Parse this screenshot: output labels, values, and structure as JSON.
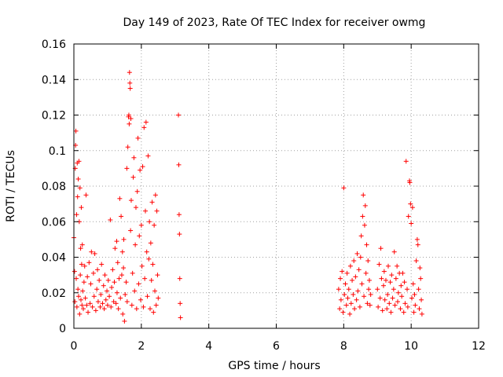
{
  "chart_data": {
    "type": "scatter",
    "title": "Day 149 of 2023, Rate Of TEC Index for receiver owmg",
    "xlabel": "GPS time / hours",
    "ylabel": "ROTI / TECUs",
    "xlim": [
      0,
      12
    ],
    "ylim": [
      0,
      0.16
    ],
    "x_ticks": [
      0,
      2,
      4,
      6,
      8,
      10,
      12
    ],
    "y_ticks": [
      0,
      0.02,
      0.04,
      0.06,
      0.08,
      0.1,
      0.12,
      0.14,
      0.16
    ],
    "x_tick_labels": [
      "0",
      "2",
      "4",
      "6",
      "8",
      "10",
      "12"
    ],
    "y_tick_labels": [
      "0",
      "0.02",
      "0.04",
      "0.06",
      "0.08",
      "0.1",
      "0.12",
      "0.14",
      "0.16"
    ],
    "grid": true,
    "marker": "+",
    "series_color": "#ff0000",
    "series": [
      {
        "points": [
          [
            0.0,
            0.051
          ],
          [
            0.02,
            0.032
          ],
          [
            0.03,
            0.015
          ],
          [
            0.04,
            0.09
          ],
          [
            0.05,
            0.103
          ],
          [
            0.06,
            0.111
          ],
          [
            0.07,
            0.028
          ],
          [
            0.08,
            0.064
          ],
          [
            0.09,
            0.012
          ],
          [
            0.1,
            0.093
          ],
          [
            0.11,
            0.074
          ],
          [
            0.12,
            0.022
          ],
          [
            0.13,
            0.084
          ],
          [
            0.14,
            0.018
          ],
          [
            0.15,
            0.094
          ],
          [
            0.16,
            0.06
          ],
          [
            0.17,
            0.008
          ],
          [
            0.18,
            0.079
          ],
          [
            0.19,
            0.03
          ],
          [
            0.2,
            0.045
          ],
          [
            0.21,
            0.016
          ],
          [
            0.22,
            0.068
          ],
          [
            0.23,
            0.036
          ],
          [
            0.24,
            0.013
          ],
          [
            0.25,
            0.047
          ],
          [
            0.26,
            0.021
          ],
          [
            0.28,
            0.011
          ],
          [
            0.3,
            0.026
          ],
          [
            0.32,
            0.035
          ],
          [
            0.34,
            0.017
          ],
          [
            0.36,
            0.075
          ],
          [
            0.38,
            0.013
          ],
          [
            0.4,
            0.029
          ],
          [
            0.42,
            0.009
          ],
          [
            0.45,
            0.037
          ],
          [
            0.48,
            0.014
          ],
          [
            0.5,
            0.025
          ],
          [
            0.52,
            0.043
          ],
          [
            0.55,
            0.012
          ],
          [
            0.58,
            0.031
          ],
          [
            0.6,
            0.018
          ],
          [
            0.62,
            0.042
          ],
          [
            0.65,
            0.01
          ],
          [
            0.68,
            0.022
          ],
          [
            0.7,
            0.033
          ],
          [
            0.72,
            0.015
          ],
          [
            0.75,
            0.027
          ],
          [
            0.78,
            0.012
          ],
          [
            0.8,
            0.019
          ],
          [
            0.82,
            0.036
          ],
          [
            0.85,
            0.014
          ],
          [
            0.88,
            0.024
          ],
          [
            0.9,
            0.011
          ],
          [
            0.92,
            0.03
          ],
          [
            0.95,
            0.016
          ],
          [
            0.98,
            0.021
          ],
          [
            1.0,
            0.013
          ],
          [
            1.02,
            0.027
          ],
          [
            1.05,
            0.018
          ],
          [
            1.08,
            0.061
          ],
          [
            1.1,
            0.012
          ],
          [
            1.12,
            0.023
          ],
          [
            1.15,
            0.033
          ],
          [
            1.18,
            0.015
          ],
          [
            1.2,
            0.026
          ],
          [
            1.22,
            0.045
          ],
          [
            1.25,
            0.014
          ],
          [
            1.27,
            0.049
          ],
          [
            1.28,
            0.02
          ],
          [
            1.3,
            0.037
          ],
          [
            1.32,
            0.011
          ],
          [
            1.34,
            0.028
          ],
          [
            1.36,
            0.073
          ],
          [
            1.38,
            0.017
          ],
          [
            1.4,
            0.063
          ],
          [
            1.42,
            0.03
          ],
          [
            1.44,
            0.043
          ],
          [
            1.45,
            0.008
          ],
          [
            1.47,
            0.034
          ],
          [
            1.48,
            0.05
          ],
          [
            1.5,
            0.004
          ],
          [
            1.52,
            0.019
          ],
          [
            1.55,
            0.026
          ],
          [
            1.57,
            0.09
          ],
          [
            1.58,
            0.015
          ],
          [
            1.6,
            0.102
          ],
          [
            1.62,
            0.119
          ],
          [
            1.63,
            0.12
          ],
          [
            1.64,
            0.115
          ],
          [
            1.65,
            0.144
          ],
          [
            1.66,
            0.138
          ],
          [
            1.67,
            0.135
          ],
          [
            1.68,
            0.055
          ],
          [
            1.69,
            0.118
          ],
          [
            1.7,
            0.072
          ],
          [
            1.72,
            0.013
          ],
          [
            1.74,
            0.031
          ],
          [
            1.76,
            0.085
          ],
          [
            1.78,
            0.096
          ],
          [
            1.8,
            0.021
          ],
          [
            1.82,
            0.047
          ],
          [
            1.84,
            0.068
          ],
          [
            1.86,
            0.011
          ],
          [
            1.88,
            0.077
          ],
          [
            1.9,
            0.107
          ],
          [
            1.92,
            0.025
          ],
          [
            1.94,
            0.052
          ],
          [
            1.96,
            0.089
          ],
          [
            1.98,
            0.016
          ],
          [
            2.0,
            0.058
          ],
          [
            2.02,
            0.035
          ],
          [
            2.04,
            0.091
          ],
          [
            2.06,
            0.012
          ],
          [
            2.08,
            0.113
          ],
          [
            2.1,
            0.028
          ],
          [
            2.12,
            0.066
          ],
          [
            2.14,
            0.116
          ],
          [
            2.16,
            0.043
          ],
          [
            2.18,
            0.018
          ],
          [
            2.2,
            0.097
          ],
          [
            2.22,
            0.039
          ],
          [
            2.24,
            0.06
          ],
          [
            2.26,
            0.011
          ],
          [
            2.28,
            0.048
          ],
          [
            2.3,
            0.027
          ],
          [
            2.32,
            0.071
          ],
          [
            2.34,
            0.036
          ],
          [
            2.36,
            0.009
          ],
          [
            2.38,
            0.058
          ],
          [
            2.4,
            0.021
          ],
          [
            2.42,
            0.075
          ],
          [
            2.44,
            0.013
          ],
          [
            2.46,
            0.066
          ],
          [
            2.48,
            0.03
          ],
          [
            2.5,
            0.017
          ],
          [
            3.1,
            0.12
          ],
          [
            3.11,
            0.092
          ],
          [
            3.12,
            0.064
          ],
          [
            3.13,
            0.053
          ],
          [
            3.14,
            0.028
          ],
          [
            3.15,
            0.014
          ],
          [
            3.16,
            0.006
          ],
          [
            7.85,
            0.022
          ],
          [
            7.88,
            0.011
          ],
          [
            7.9,
            0.028
          ],
          [
            7.92,
            0.016
          ],
          [
            7.95,
            0.032
          ],
          [
            7.98,
            0.009
          ],
          [
            8.0,
            0.079
          ],
          [
            8.02,
            0.019
          ],
          [
            8.05,
            0.025
          ],
          [
            8.08,
            0.013
          ],
          [
            8.1,
            0.031
          ],
          [
            8.12,
            0.017
          ],
          [
            8.15,
            0.022
          ],
          [
            8.18,
            0.008
          ],
          [
            8.2,
            0.035
          ],
          [
            8.22,
            0.014
          ],
          [
            8.25,
            0.027
          ],
          [
            8.28,
            0.019
          ],
          [
            8.3,
            0.038
          ],
          [
            8.32,
            0.011
          ],
          [
            8.35,
            0.029
          ],
          [
            8.38,
            0.016
          ],
          [
            8.4,
            0.042
          ],
          [
            8.42,
            0.021
          ],
          [
            8.45,
            0.033
          ],
          [
            8.48,
            0.012
          ],
          [
            8.5,
            0.04
          ],
          [
            8.52,
            0.052
          ],
          [
            8.54,
            0.025
          ],
          [
            8.56,
            0.063
          ],
          [
            8.58,
            0.075
          ],
          [
            8.6,
            0.018
          ],
          [
            8.62,
            0.058
          ],
          [
            8.64,
            0.069
          ],
          [
            8.66,
            0.031
          ],
          [
            8.68,
            0.047
          ],
          [
            8.7,
            0.014
          ],
          [
            8.72,
            0.038
          ],
          [
            8.74,
            0.022
          ],
          [
            8.76,
            0.027
          ],
          [
            8.78,
            0.013
          ],
          [
            8.8,
            0.019
          ],
          [
            9.0,
            0.022
          ],
          [
            9.02,
            0.012
          ],
          [
            9.05,
            0.036
          ],
          [
            9.08,
            0.017
          ],
          [
            9.1,
            0.045
          ],
          [
            9.12,
            0.028
          ],
          [
            9.15,
            0.01
          ],
          [
            9.18,
            0.024
          ],
          [
            9.2,
            0.032
          ],
          [
            9.22,
            0.016
          ],
          [
            9.25,
            0.027
          ],
          [
            9.28,
            0.011
          ],
          [
            9.3,
            0.019
          ],
          [
            9.32,
            0.035
          ],
          [
            9.35,
            0.014
          ],
          [
            9.38,
            0.026
          ],
          [
            9.4,
            0.009
          ],
          [
            9.42,
            0.03
          ],
          [
            9.45,
            0.017
          ],
          [
            9.48,
            0.022
          ],
          [
            9.5,
            0.043
          ],
          [
            9.52,
            0.013
          ],
          [
            9.55,
            0.028
          ],
          [
            9.58,
            0.035
          ],
          [
            9.6,
            0.015
          ],
          [
            9.62,
            0.02
          ],
          [
            9.65,
            0.031
          ],
          [
            9.68,
            0.011
          ],
          [
            9.7,
            0.024
          ],
          [
            9.72,
            0.018
          ],
          [
            9.75,
            0.031
          ],
          [
            9.78,
            0.009
          ],
          [
            9.8,
            0.026
          ],
          [
            9.82,
            0.014
          ],
          [
            9.85,
            0.094
          ],
          [
            9.88,
            0.022
          ],
          [
            9.9,
            0.012
          ],
          [
            9.92,
            0.063
          ],
          [
            9.95,
            0.083
          ],
          [
            9.96,
            0.082
          ],
          [
            9.98,
            0.07
          ],
          [
            10.0,
            0.059
          ],
          [
            10.02,
            0.017
          ],
          [
            10.04,
            0.068
          ],
          [
            10.06,
            0.025
          ],
          [
            10.08,
            0.009
          ],
          [
            10.1,
            0.019
          ],
          [
            10.12,
            0.013
          ],
          [
            10.15,
            0.038
          ],
          [
            10.18,
            0.05
          ],
          [
            10.2,
            0.047
          ],
          [
            10.22,
            0.022
          ],
          [
            10.24,
            0.011
          ],
          [
            10.26,
            0.034
          ],
          [
            10.28,
            0.028
          ],
          [
            10.3,
            0.016
          ],
          [
            10.32,
            0.008
          ]
        ]
      }
    ]
  }
}
